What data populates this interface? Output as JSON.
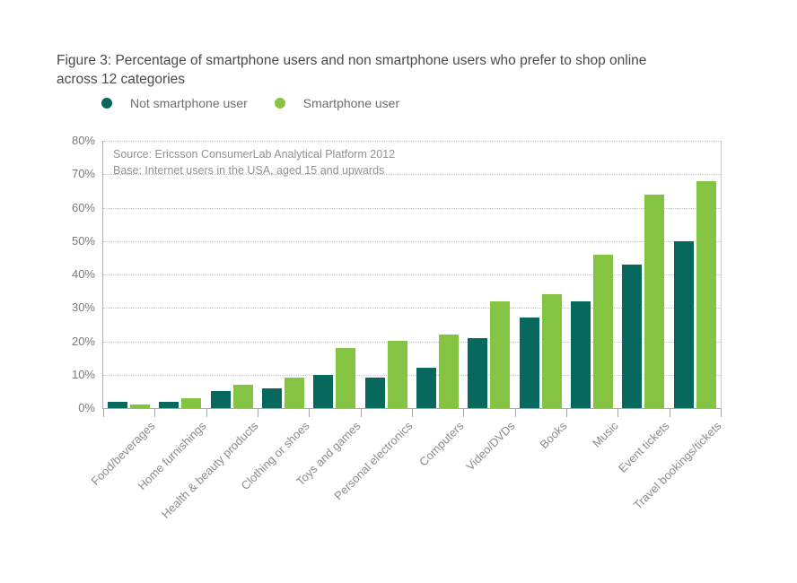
{
  "figure": {
    "title": "Figure 3: Percentage of smartphone users and non smartphone users who prefer to shop online across 12 categories"
  },
  "legend": [
    {
      "label": "Not smartphone user",
      "color": "#07695e"
    },
    {
      "label": "Smartphone user",
      "color": "#85c342"
    }
  ],
  "source_note": {
    "line1": "Source: Ericsson ConsumerLab Analytical Platform 2012",
    "line2": "Base: Internet users in the USA, aged 15 and upwards"
  },
  "chart_data": {
    "type": "bar",
    "title": "Figure 3: Percentage of smartphone users and non smartphone users who prefer to shop online across 12 categories",
    "categories": [
      "Food/beverages",
      "Home furnishings",
      "Health & beauty products",
      "Clothing or shoes",
      "Toys and games",
      "Personal electronics",
      "Computers",
      "Video/DVDs",
      "Books",
      "Music",
      "Event tickets",
      "Travel bookings/tickets"
    ],
    "series": [
      {
        "name": "Not smartphone user",
        "color": "#07695e",
        "values": [
          2,
          2,
          5,
          6,
          10,
          9,
          12,
          21,
          27,
          32,
          43,
          50
        ]
      },
      {
        "name": "Smartphone user",
        "color": "#85c342",
        "values": [
          1,
          3,
          7,
          9,
          18,
          20,
          22,
          32,
          34,
          46,
          64,
          68
        ]
      }
    ],
    "xlabel": "",
    "ylabel": "",
    "ylim": [
      0,
      80
    ],
    "ytick_step": 10,
    "ytick_format": "percent",
    "grid": "horizontal-dotted",
    "legend_position": "top-left",
    "x_tick_label_rotation_deg": -45
  },
  "colors": {
    "background": "#ffffff",
    "title_text": "#4a4a4a",
    "axis_line": "#a8a8a8",
    "gridline": "#c3c3c3",
    "tick_label_text": "#7a7a7a",
    "x_label_text": "#8c8c8c",
    "source_text": "#929292"
  }
}
